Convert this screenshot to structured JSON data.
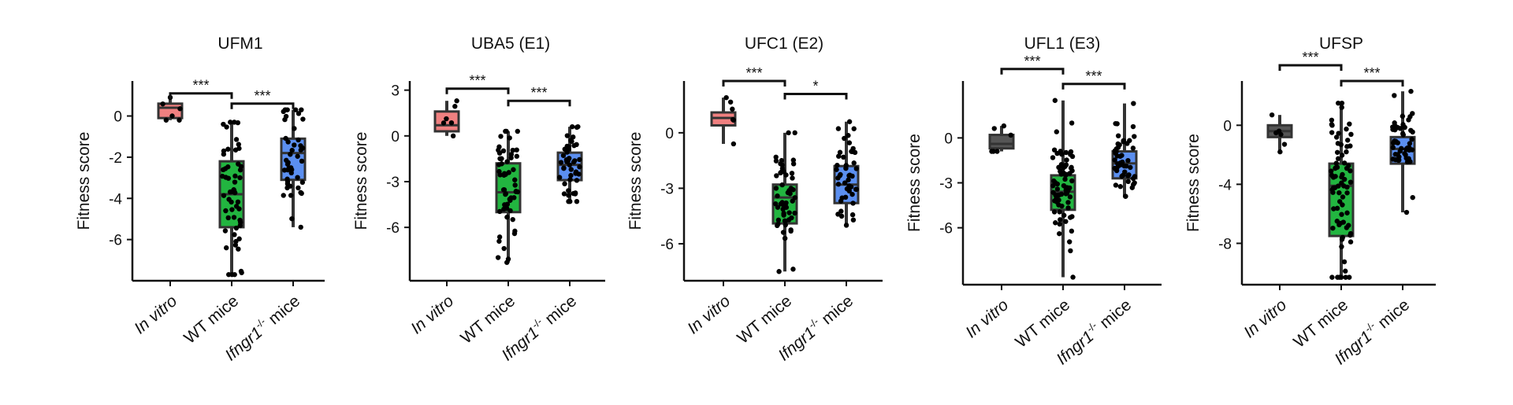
{
  "colors": {
    "invitro": "#f08080",
    "invitro_dark": "#555555",
    "wt": "#22b540",
    "ifngr": "#5b8ff0",
    "axis": "#111111",
    "points": "#000000"
  },
  "categories": [
    {
      "main": "In vitro",
      "sup": "",
      "tail": ""
    },
    {
      "main": "WT mice",
      "sup": "",
      "tail": ""
    },
    {
      "main": "Ifngr1",
      "sup": "-/-",
      "tail": " mice"
    }
  ],
  "y_label": "Fitness score",
  "chart_data": [
    {
      "type": "box",
      "title": "UFM1",
      "ylabel": "Fitness score",
      "ylim": [
        -8,
        1.7
      ],
      "yticks": [
        0,
        -2,
        -4,
        -6
      ],
      "invitro_color": "invitro",
      "boxes": [
        {
          "category": "In vitro",
          "q1": -0.1,
          "median": 0.4,
          "q3": 0.6,
          "whisker_low": -0.2,
          "whisker_high": 0.9,
          "n": 6
        },
        {
          "category": "WT mice",
          "q1": -5.4,
          "median": -3.8,
          "q3": -2.2,
          "whisker_low": -7.7,
          "whisker_high": -0.3,
          "n": 55
        },
        {
          "category": "Ifngr1-/- mice",
          "q1": -3.1,
          "median": -1.8,
          "q3": -1.1,
          "whisker_low": -5.4,
          "whisker_high": 0.3,
          "n": 45
        }
      ],
      "significance": [
        {
          "from": 0,
          "to": 1,
          "label": "***",
          "y": 1.1
        },
        {
          "from": 1,
          "to": 2,
          "label": "***",
          "y": 0.6
        }
      ]
    },
    {
      "type": "box",
      "title": "UBA5 (E1)",
      "ylabel": "Fitness score",
      "ylim": [
        -9.5,
        3.6
      ],
      "yticks": [
        3,
        0,
        -3,
        -6
      ],
      "invitro_color": "invitro",
      "boxes": [
        {
          "category": "In vitro",
          "q1": 0.3,
          "median": 0.7,
          "q3": 1.6,
          "whisker_low": 0.0,
          "whisker_high": 2.3,
          "n": 6
        },
        {
          "category": "WT mice",
          "q1": -5.0,
          "median": -3.7,
          "q3": -1.8,
          "whisker_low": -8.3,
          "whisker_high": 0.3,
          "n": 55
        },
        {
          "category": "Ifngr1-/- mice",
          "q1": -2.9,
          "median": -1.9,
          "q3": -1.1,
          "whisker_low": -4.3,
          "whisker_high": 0.6,
          "n": 45
        }
      ],
      "significance": [
        {
          "from": 0,
          "to": 1,
          "label": "***",
          "y": 3.1
        },
        {
          "from": 1,
          "to": 2,
          "label": "***",
          "y": 2.3
        }
      ]
    },
    {
      "type": "box",
      "title": "UFC1 (E2)",
      "ylabel": "Fitness score",
      "ylim": [
        -8.0,
        2.8
      ],
      "yticks": [
        0,
        -3,
        -6
      ],
      "invitro_color": "invitro",
      "boxes": [
        {
          "category": "In vitro",
          "q1": 0.4,
          "median": 0.8,
          "q3": 1.1,
          "whisker_low": -0.6,
          "whisker_high": 1.9,
          "n": 6
        },
        {
          "category": "WT mice",
          "q1": -4.9,
          "median": -3.5,
          "q3": -2.8,
          "whisker_low": -7.5,
          "whisker_high": 0.0,
          "n": 55
        },
        {
          "category": "Ifngr1-/- mice",
          "q1": -3.8,
          "median": -2.8,
          "q3": -1.8,
          "whisker_low": -5.0,
          "whisker_high": 0.6,
          "n": 45
        }
      ],
      "significance": [
        {
          "from": 0,
          "to": 1,
          "label": "***",
          "y": 2.8
        },
        {
          "from": 1,
          "to": 2,
          "label": "*",
          "y": 2.1
        }
      ]
    },
    {
      "type": "box",
      "title": "UFL1 (E3)",
      "ylabel": "Fitness score",
      "ylim": [
        -9.8,
        3.8
      ],
      "yticks": [
        0,
        -3,
        -6
      ],
      "invitro_color": "invitro_dark",
      "boxes": [
        {
          "category": "In vitro",
          "q1": -0.7,
          "median": -0.4,
          "q3": 0.2,
          "whisker_low": -0.9,
          "whisker_high": 0.8,
          "n": 6
        },
        {
          "category": "WT mice",
          "q1": -4.8,
          "median": -3.6,
          "q3": -2.5,
          "whisker_low": -9.3,
          "whisker_high": 2.5,
          "n": 70
        },
        {
          "category": "Ifngr1-/- mice",
          "q1": -2.7,
          "median": -1.7,
          "q3": -0.9,
          "whisker_low": -3.9,
          "whisker_high": 2.3,
          "n": 50
        }
      ],
      "significance": [
        {
          "from": 0,
          "to": 1,
          "label": "***",
          "y": 4.6
        },
        {
          "from": 1,
          "to": 2,
          "label": "***",
          "y": 3.6
        }
      ]
    },
    {
      "type": "box",
      "title": "UFSP",
      "ylabel": "Fitness score",
      "ylim": [
        -10.8,
        3.0
      ],
      "yticks": [
        0,
        -4,
        -8
      ],
      "invitro_color": "invitro_dark",
      "boxes": [
        {
          "category": "In vitro",
          "q1": -0.8,
          "median": -0.4,
          "q3": 0.0,
          "whisker_low": -1.8,
          "whisker_high": 0.7,
          "n": 6
        },
        {
          "category": "WT mice",
          "q1": -7.5,
          "median": -4.1,
          "q3": -2.6,
          "whisker_low": -10.3,
          "whisker_high": 1.5,
          "n": 75
        },
        {
          "category": "Ifngr1-/- mice",
          "q1": -2.6,
          "median": -1.6,
          "q3": -0.8,
          "whisker_low": -5.9,
          "whisker_high": 2.3,
          "n": 50
        }
      ],
      "significance": [
        {
          "from": 0,
          "to": 1,
          "label": "***",
          "y": 4.3
        },
        {
          "from": 1,
          "to": 2,
          "label": "***",
          "y": 3.0
        }
      ]
    }
  ]
}
